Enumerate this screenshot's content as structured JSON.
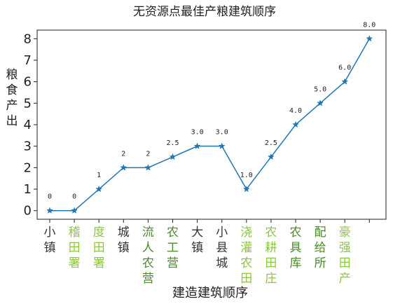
{
  "chart_data": {
    "type": "line",
    "title": "无资源点最佳产粮建筑顺序",
    "xlabel": "建造建筑顺序",
    "ylabel": "粮食产出",
    "categories": [
      "小镇",
      "稽田署",
      "度田署",
      "城镇",
      "流人农营",
      "农工营",
      "大镇",
      "小县城",
      "浇灌农田",
      "农耕田庄",
      "农具库",
      "配给所",
      "豪强田产",
      ""
    ],
    "category_colors": [
      "#333333",
      "#8cc63f",
      "#8cc63f",
      "#333333",
      "#4a8a2a",
      "#4a8a2a",
      "#333333",
      "#333333",
      "#8cc63f",
      "#8cc63f",
      "#4a8a2a",
      "#4a8a2a",
      "#8cc63f",
      "#333333"
    ],
    "values": [
      0,
      0,
      1,
      2,
      2,
      2.5,
      3,
      3,
      1,
      2.5,
      4,
      5,
      6,
      8
    ],
    "data_labels": [
      "0",
      "0",
      "1",
      "2",
      "2",
      "2.5",
      "3.0",
      "3.0",
      "1.0",
      "2.5",
      "4.0",
      "5.0",
      "6.0",
      "8.0"
    ],
    "yticks": [
      "0",
      "1",
      "2",
      "3",
      "4",
      "5",
      "6",
      "7",
      "8"
    ],
    "ylim": [
      -0.4,
      8.4
    ],
    "marker": "star",
    "line_color": "#1f77b4",
    "grid": false
  }
}
